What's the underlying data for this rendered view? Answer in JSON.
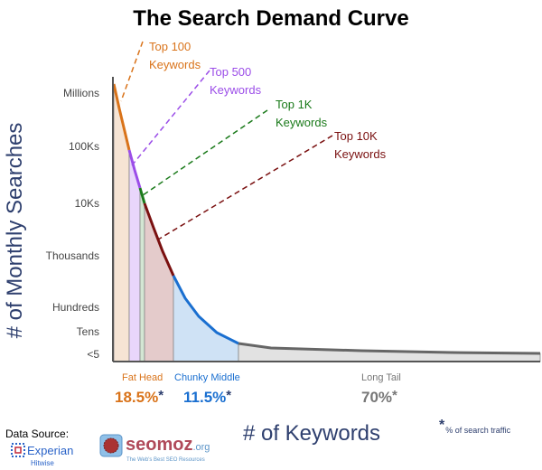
{
  "chart_data": {
    "type": "area",
    "title": "The Search Demand Curve",
    "ylabel": "# of Monthly Searches",
    "xlabel": "# of Keywords",
    "y_ticks": [
      "Millions",
      "100Ks",
      "10Ks",
      "Thousands",
      "Hundreds",
      "Tens",
      "<5"
    ],
    "grid": false,
    "segments": [
      {
        "name": "Top 100 Keywords",
        "label_lines": [
          "Top 100",
          "Keywords"
        ],
        "color": "#d9731a",
        "fill": "#f6e4d4"
      },
      {
        "name": "Top 500 Keywords",
        "label_lines": [
          "Top 500",
          "Keywords"
        ],
        "color": "#9b4de8",
        "fill": "#e9d6fb"
      },
      {
        "name": "Top 1K Keywords",
        "label_lines": [
          "Top 1K",
          "Keywords"
        ],
        "color": "#1a7a1a",
        "fill": "#d3e6d3"
      },
      {
        "name": "Top 10K Keywords",
        "label_lines": [
          "Top 10K",
          "Keywords"
        ],
        "color": "#7a1010",
        "fill": "#e4cbcb"
      },
      {
        "name": "Chunky Middle",
        "color": "#1a6fd0",
        "fill": "#cfe2f5"
      },
      {
        "name": "Long Tail",
        "color": "#666666",
        "fill": "#e2e2e2"
      }
    ],
    "groups": [
      {
        "label": "Fat Head",
        "percent": "18.5%",
        "color": "#d9731a"
      },
      {
        "label": "Chunky Middle",
        "percent": "11.5%",
        "color": "#1a6fd0"
      },
      {
        "label": "Long Tail",
        "percent": "70%",
        "color": "#777777"
      }
    ],
    "asterisk": "*",
    "footnote": "% of search traffic"
  },
  "credits": {
    "data_source": "Data Source:",
    "experian": "Experian",
    "hitwise": "Hitwise",
    "seomoz": "seomoz",
    "seomoz_org": ".org",
    "seomoz_tagline": "The Web's Best SEO Resources"
  }
}
